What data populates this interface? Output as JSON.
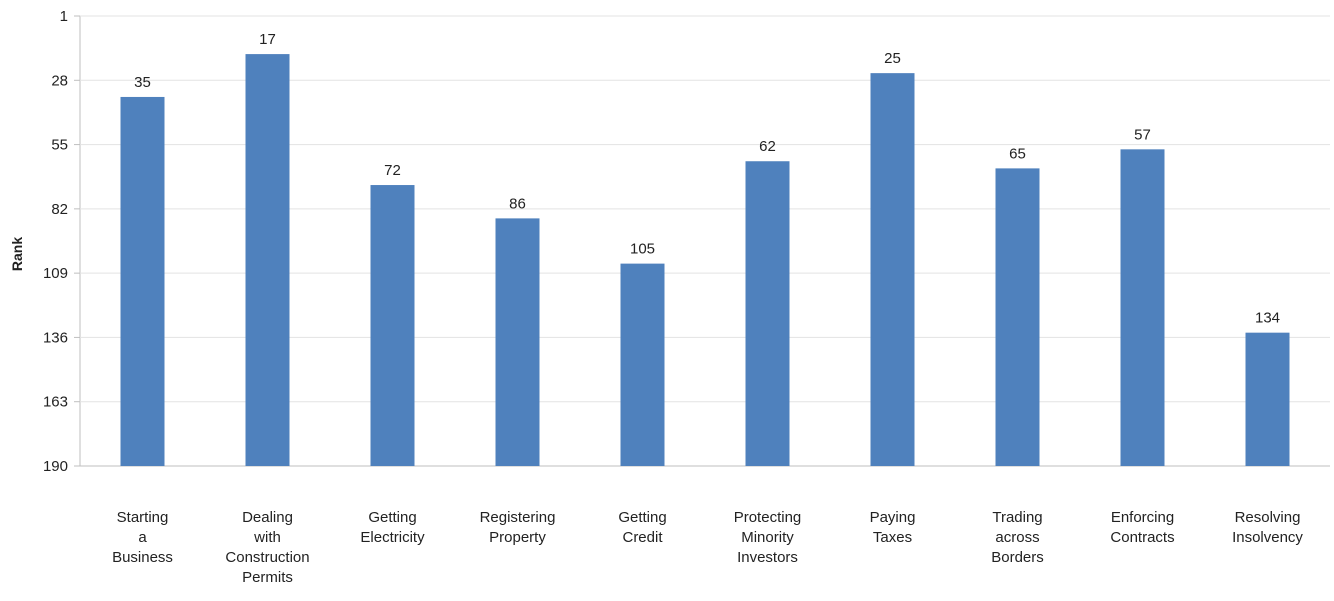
{
  "chart_data": {
    "type": "bar",
    "title": "",
    "ylabel": "Rank",
    "xlabel": "",
    "y_inverted": true,
    "ylim": [
      1,
      190
    ],
    "yticks": [
      1,
      28,
      55,
      82,
      109,
      136,
      163,
      190
    ],
    "grid": true,
    "legend": "none",
    "bar_color": "#4F81BD",
    "categories": [
      "Starting a Business",
      "Dealing with Construction Permits",
      "Getting Electricity",
      "Registering Property",
      "Getting Credit",
      "Protecting Minority Investors",
      "Paying Taxes",
      "Trading across Borders",
      "Enforcing Contracts",
      "Resolving Insolvency"
    ],
    "category_lines": [
      [
        "Starting",
        "a",
        "Business"
      ],
      [
        "Dealing",
        "with",
        "Construction",
        "Permits"
      ],
      [
        "Getting",
        "Electricity"
      ],
      [
        "Registering",
        "Property"
      ],
      [
        "Getting",
        "Credit"
      ],
      [
        "Protecting",
        "Minority",
        "Investors"
      ],
      [
        "Paying",
        "Taxes"
      ],
      [
        "Trading",
        "across",
        "Borders"
      ],
      [
        "Enforcing",
        "Contracts"
      ],
      [
        "Resolving",
        "Insolvency"
      ]
    ],
    "values": [
      35,
      17,
      72,
      86,
      105,
      62,
      25,
      65,
      57,
      134
    ]
  }
}
